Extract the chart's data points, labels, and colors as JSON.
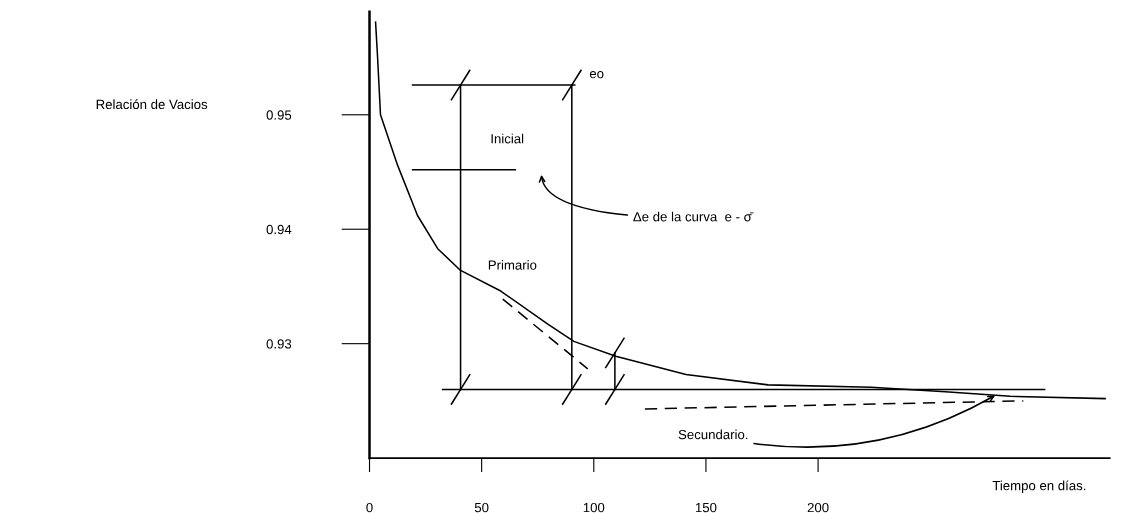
{
  "chart_data": {
    "type": "line",
    "xlabel": "Tiempo en días.",
    "ylabel": "Relación de Vacios",
    "xlim": [
      0,
      330
    ],
    "ylim": [
      0.92,
      0.959
    ],
    "xticks": [
      0,
      50,
      100,
      150,
      200
    ],
    "yticks": [
      0.93,
      0.94,
      0.95
    ],
    "grid": false,
    "series": [
      {
        "color": "#000000",
        "x": [
          2.7,
          3.6,
          4.9,
          12.5,
          21.4,
          30.4,
          40.6,
          58.5,
          79.5,
          91.1,
          109.8,
          141.1,
          177.7,
          223.7,
          256.7,
          285.7,
          328
        ],
        "values": [
          0.9581,
          0.955,
          0.95,
          0.9456,
          0.9412,
          0.9383,
          0.9364,
          0.9346,
          0.9317,
          0.9302,
          0.9289,
          0.9273,
          0.9264,
          0.9262,
          0.9258,
          0.9254,
          0.9252
        ]
      },
      {
        "color": "#000000",
        "x": [
          32.6,
          301
        ],
        "values": [
          0.926,
          0.926
        ]
      },
      {
        "color": "#000000",
        "x": [
          19.2,
          91.5
        ],
        "values": [
          0.9526,
          0.9526
        ]
      },
      {
        "color": "#000000",
        "x": [
          19.2,
          65
        ],
        "values": [
          0.9452,
          0.9452
        ]
      },
      {
        "color": "#000000",
        "marker": "cross",
        "x": [
          40.6,
          40.6
        ],
        "values": [
          0.9526,
          0.926
        ]
      },
      {
        "color": "#000000",
        "marker": "cross",
        "x": [
          90.2,
          90.2
        ],
        "values": [
          0.9526,
          0.926
        ]
      },
      {
        "color": "#000000",
        "marker": "cross",
        "x": [
          109.4,
          109.4
        ],
        "values": [
          0.9292,
          0.926
        ]
      },
      {
        "color": "#000000",
        "line_style": "dashed",
        "x": [
          59.4,
          97.3
        ],
        "values": [
          0.9339,
          0.9278
        ]
      },
      {
        "color": "#000000",
        "line_style": "dashed",
        "x": [
          122.8,
          291.5
        ],
        "values": [
          0.9243,
          0.925
        ]
      }
    ],
    "annotations": [
      "eo",
      "Inicial",
      "Primario",
      "Δe de la curva  e - σ̄",
      {
        "text": "Secundario.",
        "x": 280,
        "y": 0.9256
      }
    ]
  }
}
